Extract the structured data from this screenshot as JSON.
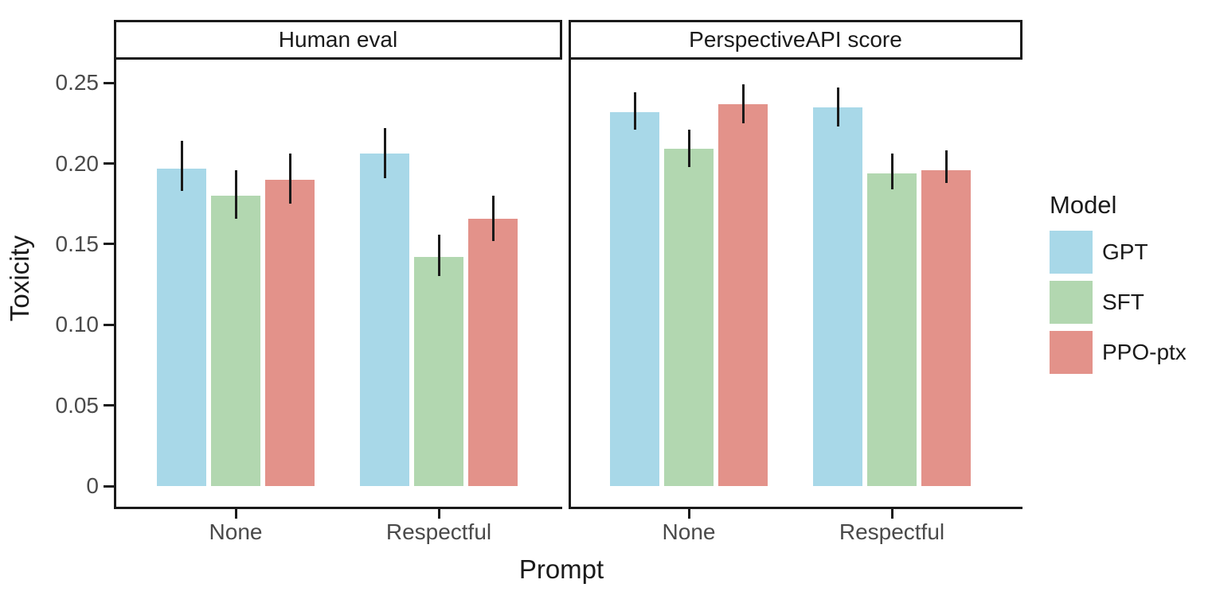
{
  "chart_data": {
    "type": "bar",
    "title": "",
    "xlabel": "Prompt",
    "ylabel": "Toxicity",
    "ylim": [
      0,
      0.27
    ],
    "grid": false,
    "legend_position": "right",
    "y_ticks": [
      0,
      0.05,
      0.1,
      0.15,
      0.2,
      0.25
    ],
    "y_tick_labels": [
      "0",
      "0.05",
      "0.10",
      "0.15",
      "0.20",
      "0.25"
    ],
    "facets": [
      {
        "label": "Human eval",
        "categories": [
          "None",
          "Respectful"
        ],
        "series": [
          {
            "name": "GPT",
            "color": "#a8d8e8",
            "values": [
              0.197,
              0.206
            ],
            "ci_low": [
              0.183,
              0.191
            ],
            "ci_high": [
              0.214,
              0.222
            ]
          },
          {
            "name": "SFT",
            "color": "#b2d7b0",
            "values": [
              0.18,
              0.142
            ],
            "ci_low": [
              0.166,
              0.13
            ],
            "ci_high": [
              0.196,
              0.156
            ]
          },
          {
            "name": "PPO-ptx",
            "color": "#e3928a",
            "values": [
              0.19,
              0.166
            ],
            "ci_low": [
              0.175,
              0.152
            ],
            "ci_high": [
              0.206,
              0.18
            ]
          }
        ]
      },
      {
        "label": "PerspectiveAPI score",
        "categories": [
          "None",
          "Respectful"
        ],
        "series": [
          {
            "name": "GPT",
            "color": "#a8d8e8",
            "values": [
              0.232,
              0.235
            ],
            "ci_low": [
              0.221,
              0.223
            ],
            "ci_high": [
              0.244,
              0.247
            ]
          },
          {
            "name": "SFT",
            "color": "#b2d7b0",
            "values": [
              0.209,
              0.194
            ],
            "ci_low": [
              0.198,
              0.184
            ],
            "ci_high": [
              0.221,
              0.206
            ]
          },
          {
            "name": "PPO-ptx",
            "color": "#e3928a",
            "values": [
              0.237,
              0.196
            ],
            "ci_low": [
              0.225,
              0.188
            ],
            "ci_high": [
              0.249,
              0.208
            ]
          }
        ]
      }
    ],
    "legend": {
      "title": "Model",
      "items": [
        {
          "label": "GPT",
          "color": "#a8d8e8"
        },
        {
          "label": "SFT",
          "color": "#b2d7b0"
        },
        {
          "label": "PPO-ptx",
          "color": "#e3928a"
        }
      ]
    },
    "colors": {
      "axis": "#1a1a1a",
      "tick_label": "#4a4a4a",
      "background": "#ffffff"
    }
  }
}
